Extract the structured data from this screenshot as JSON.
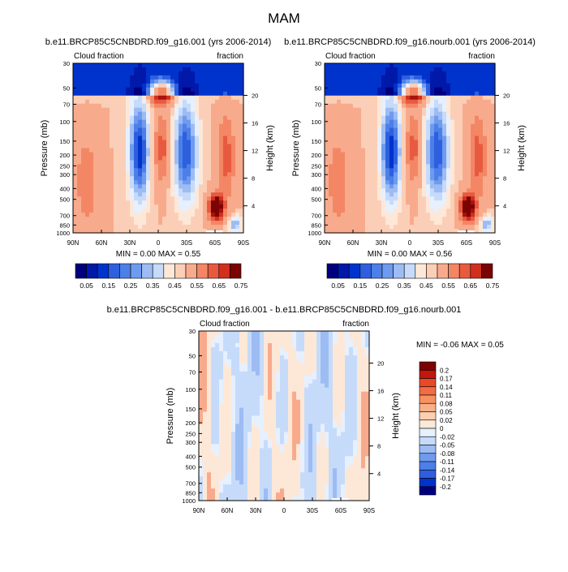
{
  "figure_title": "MAM",
  "contour_palette": [
    "#00007f",
    "#0019a9",
    "#0033cc",
    "#2d5fdf",
    "#4d7fe8",
    "#6e9bef",
    "#9dbcf4",
    "#c6dbfa",
    "#e6f0ff",
    "#fde8d8",
    "#fbcfb7",
    "#f8ab8c",
    "#f38765",
    "#e85a40",
    "#d0301c",
    "#a8120f",
    "#7a0403"
  ],
  "chart_data": [
    {
      "type": "heatmap",
      "panel": "model-1",
      "title": "b.e11.BRCP85C5CNBDRD.f09_g16.001 (yrs 2006-2014)",
      "left_label": "Cloud fraction",
      "right_label": "fraction",
      "ylabel": "Pressure (mb)",
      "ylabel_right": "Height (km)",
      "x_ticks": [
        "90N",
        "60N",
        "30N",
        "0",
        "30S",
        "60S",
        "90S"
      ],
      "y_ticks": [
        "30",
        "50",
        "70",
        "100",
        "150",
        "200",
        "250",
        "300",
        "400",
        "500",
        "700",
        "850",
        "1000"
      ],
      "y_ticks_right": [
        "20",
        "16",
        "12",
        "8",
        "4"
      ],
      "stats_text": "MIN =   0.00  MAX =   0.55",
      "colorbar_labels": [
        "0.05",
        "0.15",
        "0.25",
        "0.35",
        "0.45",
        "0.55",
        "0.65",
        "0.75"
      ],
      "value_range": [
        0.0,
        0.55
      ]
    },
    {
      "type": "heatmap",
      "panel": "model-2",
      "title": "b.e11.BRCP85C5CNBDRD.f09_g16.nourb.001 (yrs 2006-2014)",
      "left_label": "Cloud fraction",
      "right_label": "fraction",
      "ylabel": "Pressure (mb)",
      "ylabel_right": "Height (km)",
      "x_ticks": [
        "90N",
        "60N",
        "30N",
        "0",
        "30S",
        "60S",
        "90S"
      ],
      "y_ticks": [
        "30",
        "50",
        "70",
        "100",
        "150",
        "200",
        "250",
        "300",
        "400",
        "500",
        "700",
        "850",
        "1000"
      ],
      "y_ticks_right": [
        "20",
        "16",
        "12",
        "8",
        "4"
      ],
      "stats_text": "MIN =   0.00  MAX =   0.56",
      "colorbar_labels": [
        "0.05",
        "0.15",
        "0.25",
        "0.35",
        "0.45",
        "0.55",
        "0.65",
        "0.75"
      ],
      "value_range": [
        0.0,
        0.56
      ]
    },
    {
      "type": "heatmap",
      "panel": "difference",
      "title": "b.e11.BRCP85C5CNBDRD.f09_g16.001 - b.e11.BRCP85C5CNBDRD.f09_g16.nourb.001",
      "left_label": "Cloud fraction",
      "right_label": "fraction",
      "ylabel": "Pressure (mb)",
      "ylabel_right": "Height (km)",
      "x_ticks": [
        "90N",
        "60N",
        "30N",
        "0",
        "30S",
        "60S",
        "90S"
      ],
      "y_ticks": [
        "30",
        "50",
        "70",
        "100",
        "150",
        "200",
        "250",
        "300",
        "400",
        "500",
        "700",
        "850",
        "1000"
      ],
      "y_ticks_right": [
        "20",
        "16",
        "12",
        "8",
        "4"
      ],
      "stats_text": "MIN =  -0.06  MAX =   0.05",
      "colorbar_labels": [
        "0.2",
        "0.17",
        "0.14",
        "0.11",
        "0.08",
        "0.05",
        "0.02",
        "0",
        "-0.02",
        "-0.05",
        "-0.08",
        "-0.11",
        "-0.14",
        "-0.17",
        "-0.2"
      ],
      "value_range": [
        -0.06,
        0.05
      ]
    }
  ]
}
